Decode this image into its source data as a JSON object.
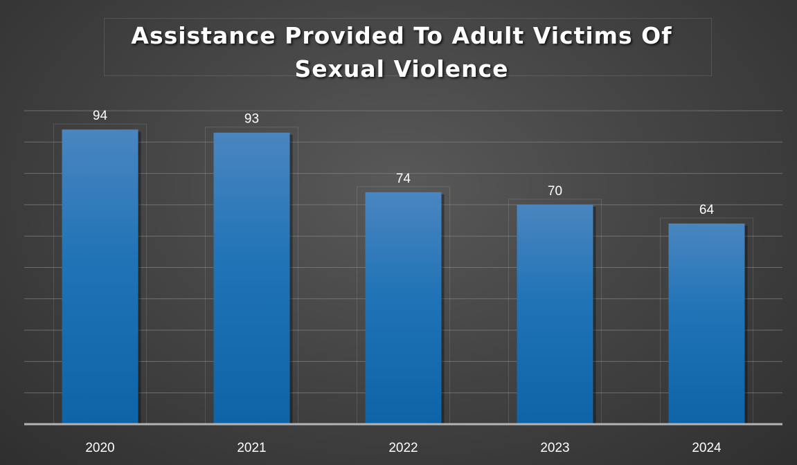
{
  "chart_data": {
    "type": "bar",
    "title": "Assistance Provided To Adult Victims Of Sexual Violence",
    "categories": [
      "2020",
      "2021",
      "2022",
      "2023",
      "2024"
    ],
    "values": [
      94,
      93,
      74,
      70,
      64
    ],
    "xlabel": "",
    "ylabel": "",
    "ylim": [
      0,
      100
    ],
    "grid": true,
    "legend": "none",
    "colors": {
      "bar_top": "#4a86c0",
      "bar_bottom": "#0e64a8",
      "gridline": "#808080",
      "axis": "#b4b4b4",
      "label_text": "#ffffff",
      "background_center": "#595959",
      "background_edge": "#2f2f2f"
    }
  }
}
